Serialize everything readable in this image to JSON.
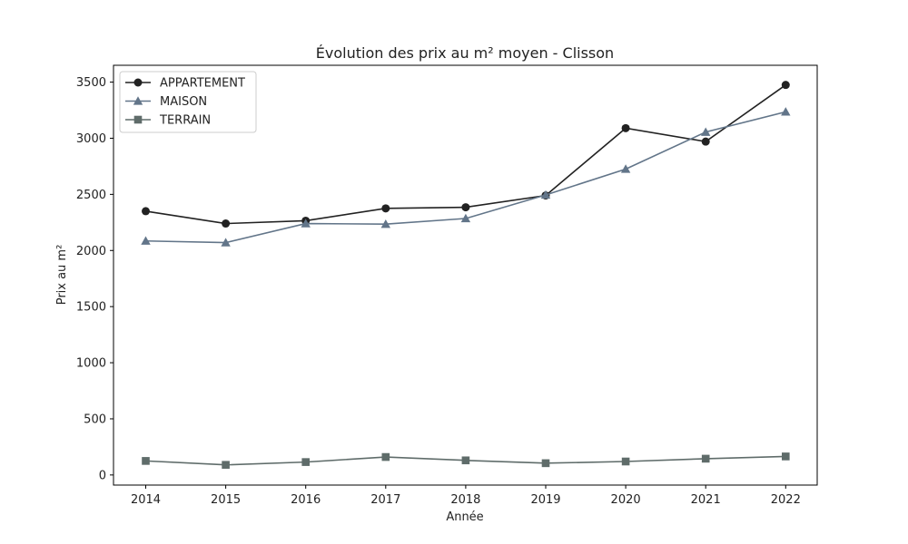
{
  "chart_data": {
    "type": "line",
    "title": "Évolution des prix au m² moyen - Clisson",
    "xlabel": "Année",
    "ylabel": "Prix au m²",
    "x": [
      "2014",
      "2015",
      "2016",
      "2017",
      "2018",
      "2019",
      "2020",
      "2021",
      "2022"
    ],
    "yticks": [
      "0",
      "500",
      "1000",
      "1500",
      "2000",
      "2500",
      "3000",
      "3500"
    ],
    "ylim": [
      -90,
      3650
    ],
    "grid": false,
    "legend_position": "top-left",
    "series": [
      {
        "name": "APPARTEMENT",
        "marker": "circle",
        "color": "#222222",
        "values": [
          2350,
          2240,
          2265,
          2375,
          2385,
          2490,
          3090,
          2970,
          3475
        ]
      },
      {
        "name": "MAISON",
        "marker": "triangle",
        "color": "#627589",
        "values": [
          2085,
          2070,
          2240,
          2235,
          2285,
          2495,
          2725,
          3055,
          3235
        ]
      },
      {
        "name": "TERRAIN",
        "marker": "square",
        "color": "#5f6c6a",
        "values": [
          125,
          90,
          115,
          160,
          130,
          105,
          120,
          145,
          165
        ]
      }
    ]
  }
}
